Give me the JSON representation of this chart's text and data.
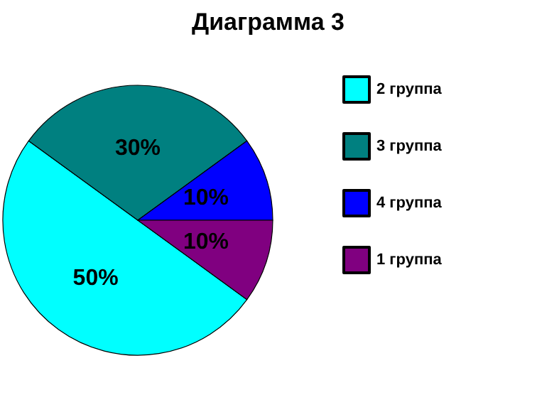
{
  "chart_data": {
    "type": "pie",
    "title": "Диаграмма 3",
    "categories": [
      "2 группа",
      "3 группа",
      "4 группа",
      "1 группа"
    ],
    "values": [
      50,
      30,
      10,
      10
    ],
    "value_labels": [
      "50%",
      "30%",
      "10%",
      "10%"
    ],
    "colors": [
      "#00ffff",
      "#008080",
      "#0000ff",
      "#800080"
    ],
    "legend": "right"
  }
}
